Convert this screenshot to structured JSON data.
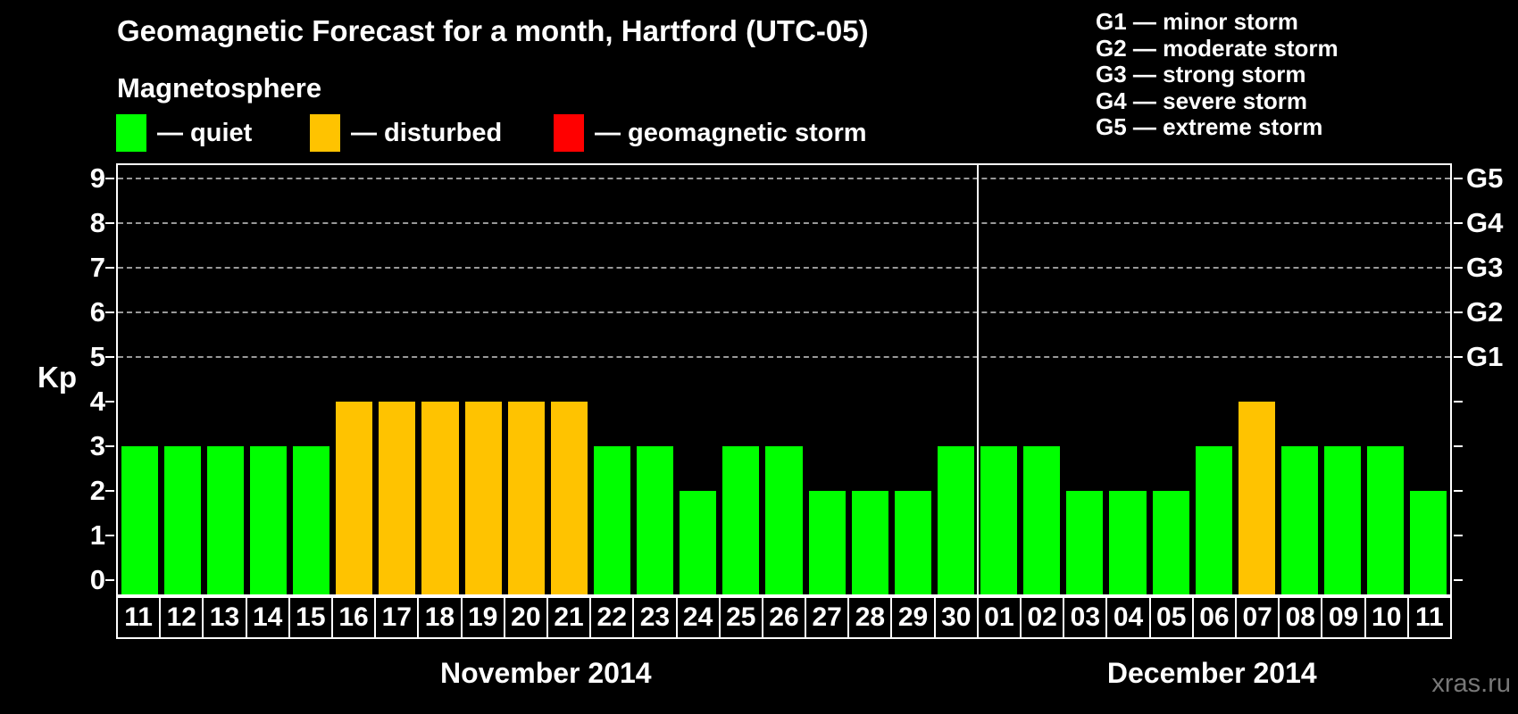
{
  "title": "Geomagnetic Forecast for a month, Hartford (UTC-05)",
  "subtitle": "Magnetosphere",
  "condition_legend": [
    {
      "name": "quiet",
      "label": "— quiet",
      "color": "#00ff00"
    },
    {
      "name": "disturbed",
      "label": "— disturbed",
      "color": "#ffc300"
    },
    {
      "name": "storm",
      "label": "— geomagnetic storm",
      "color": "#ff0000"
    }
  ],
  "storm_scale_legend": [
    "G1 — minor storm",
    "G2 — moderate storm",
    "G3 — strong storm",
    "G4 — severe storm",
    "G5 — extreme storm"
  ],
  "watermark": "xras.ru",
  "chart_data": {
    "type": "bar",
    "title": "Geomagnetic Forecast for a month, Hartford (UTC-05)",
    "ylabel": "Kp",
    "ylim": [
      0,
      9
    ],
    "y_ticks": [
      0,
      1,
      2,
      3,
      4,
      5,
      6,
      7,
      8,
      9
    ],
    "gridlines_at": [
      5,
      6,
      7,
      8,
      9
    ],
    "grid": "dashed horizontal lines at Kp 5-9",
    "legend_position": "top",
    "right_axis_labels": [
      {
        "kp": 5,
        "label": "G1"
      },
      {
        "kp": 6,
        "label": "G2"
      },
      {
        "kp": 7,
        "label": "G3"
      },
      {
        "kp": 8,
        "label": "G4"
      },
      {
        "kp": 9,
        "label": "G5"
      }
    ],
    "color_map": {
      "quiet": "#00ff00",
      "disturbed": "#ffc300",
      "storm": "#ff0000"
    },
    "sections": [
      {
        "month_label": "November 2014",
        "points": [
          {
            "day": "11",
            "kp": 3,
            "state": "quiet"
          },
          {
            "day": "12",
            "kp": 3,
            "state": "quiet"
          },
          {
            "day": "13",
            "kp": 3,
            "state": "quiet"
          },
          {
            "day": "14",
            "kp": 3,
            "state": "quiet"
          },
          {
            "day": "15",
            "kp": 3,
            "state": "quiet"
          },
          {
            "day": "16",
            "kp": 4,
            "state": "disturbed"
          },
          {
            "day": "17",
            "kp": 4,
            "state": "disturbed"
          },
          {
            "day": "18",
            "kp": 4,
            "state": "disturbed"
          },
          {
            "day": "19",
            "kp": 4,
            "state": "disturbed"
          },
          {
            "day": "20",
            "kp": 4,
            "state": "disturbed"
          },
          {
            "day": "21",
            "kp": 4,
            "state": "disturbed"
          },
          {
            "day": "22",
            "kp": 3,
            "state": "quiet"
          },
          {
            "day": "23",
            "kp": 3,
            "state": "quiet"
          },
          {
            "day": "24",
            "kp": 2,
            "state": "quiet"
          },
          {
            "day": "25",
            "kp": 3,
            "state": "quiet"
          },
          {
            "day": "26",
            "kp": 3,
            "state": "quiet"
          },
          {
            "day": "27",
            "kp": 2,
            "state": "quiet"
          },
          {
            "day": "28",
            "kp": 2,
            "state": "quiet"
          },
          {
            "day": "29",
            "kp": 2,
            "state": "quiet"
          },
          {
            "day": "30",
            "kp": 3,
            "state": "quiet"
          }
        ]
      },
      {
        "month_label": "December 2014",
        "points": [
          {
            "day": "01",
            "kp": 3,
            "state": "quiet"
          },
          {
            "day": "02",
            "kp": 3,
            "state": "quiet"
          },
          {
            "day": "03",
            "kp": 2,
            "state": "quiet"
          },
          {
            "day": "04",
            "kp": 2,
            "state": "quiet"
          },
          {
            "day": "05",
            "kp": 2,
            "state": "quiet"
          },
          {
            "day": "06",
            "kp": 3,
            "state": "quiet"
          },
          {
            "day": "07",
            "kp": 4,
            "state": "disturbed"
          },
          {
            "day": "08",
            "kp": 3,
            "state": "quiet"
          },
          {
            "day": "09",
            "kp": 3,
            "state": "quiet"
          },
          {
            "day": "10",
            "kp": 3,
            "state": "quiet"
          },
          {
            "day": "11",
            "kp": 2,
            "state": "quiet"
          }
        ]
      }
    ]
  }
}
